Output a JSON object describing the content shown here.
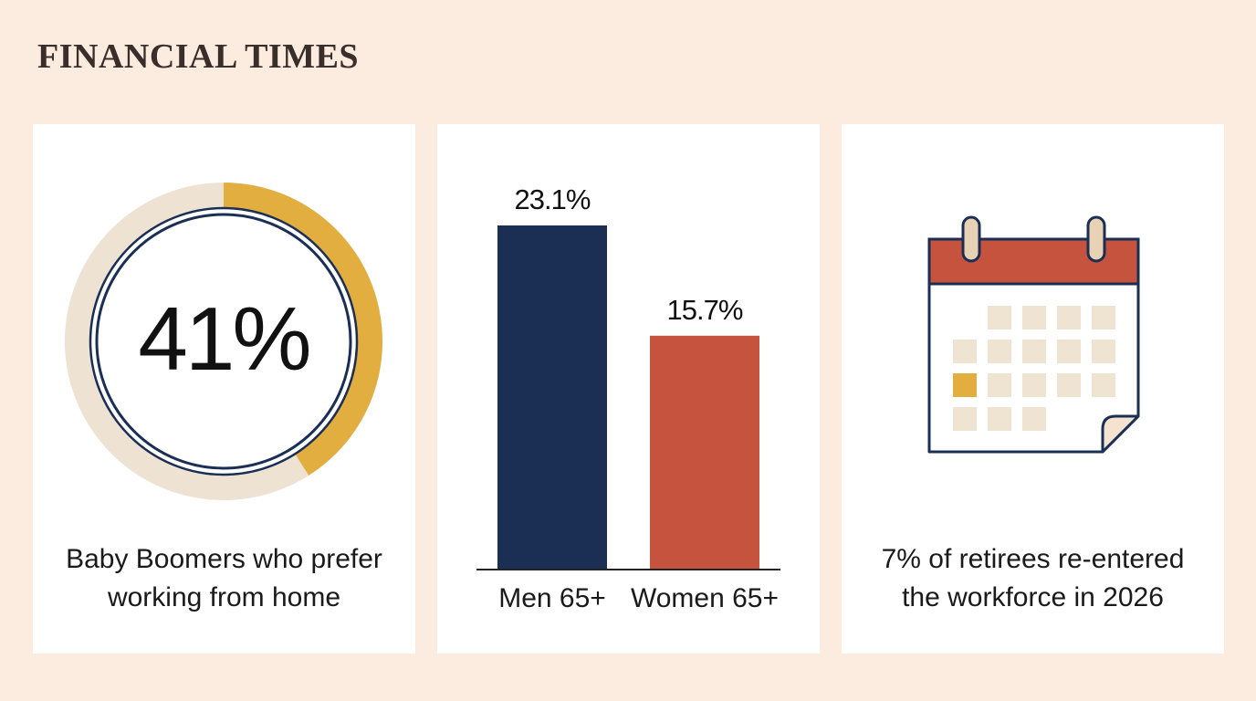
{
  "header": {
    "brand": "FINANCIAL TIMES"
  },
  "colors": {
    "page_background": "#FCEBDF",
    "card_background": "#FFFFFF",
    "accent_gold": "#E1AE3F",
    "ring_track": "#EEE2D3",
    "navy": "#1B2F55",
    "red": "#C6533E",
    "calendar_cell": "#EFE3D2"
  },
  "cards": {
    "wfh": {
      "value_label": "41%",
      "percent": 41,
      "caption_line1": "Baby Boomers who prefer",
      "caption_line2": "working from home"
    },
    "reentry": {
      "icon": "calendar-icon",
      "caption_line1": "7% of retirees re-entered",
      "caption_line2": "the workforce in 2026"
    }
  },
  "chart_data": {
    "type": "bar",
    "categories": [
      "Men 65+",
      "Women 65+"
    ],
    "values": [
      23.1,
      15.7
    ],
    "value_labels": [
      "23.1%",
      "15.7%"
    ],
    "colors": [
      "#1B2F55",
      "#C6533E"
    ],
    "ylim": [
      0,
      23.1
    ],
    "grid": false,
    "legend": "none"
  }
}
